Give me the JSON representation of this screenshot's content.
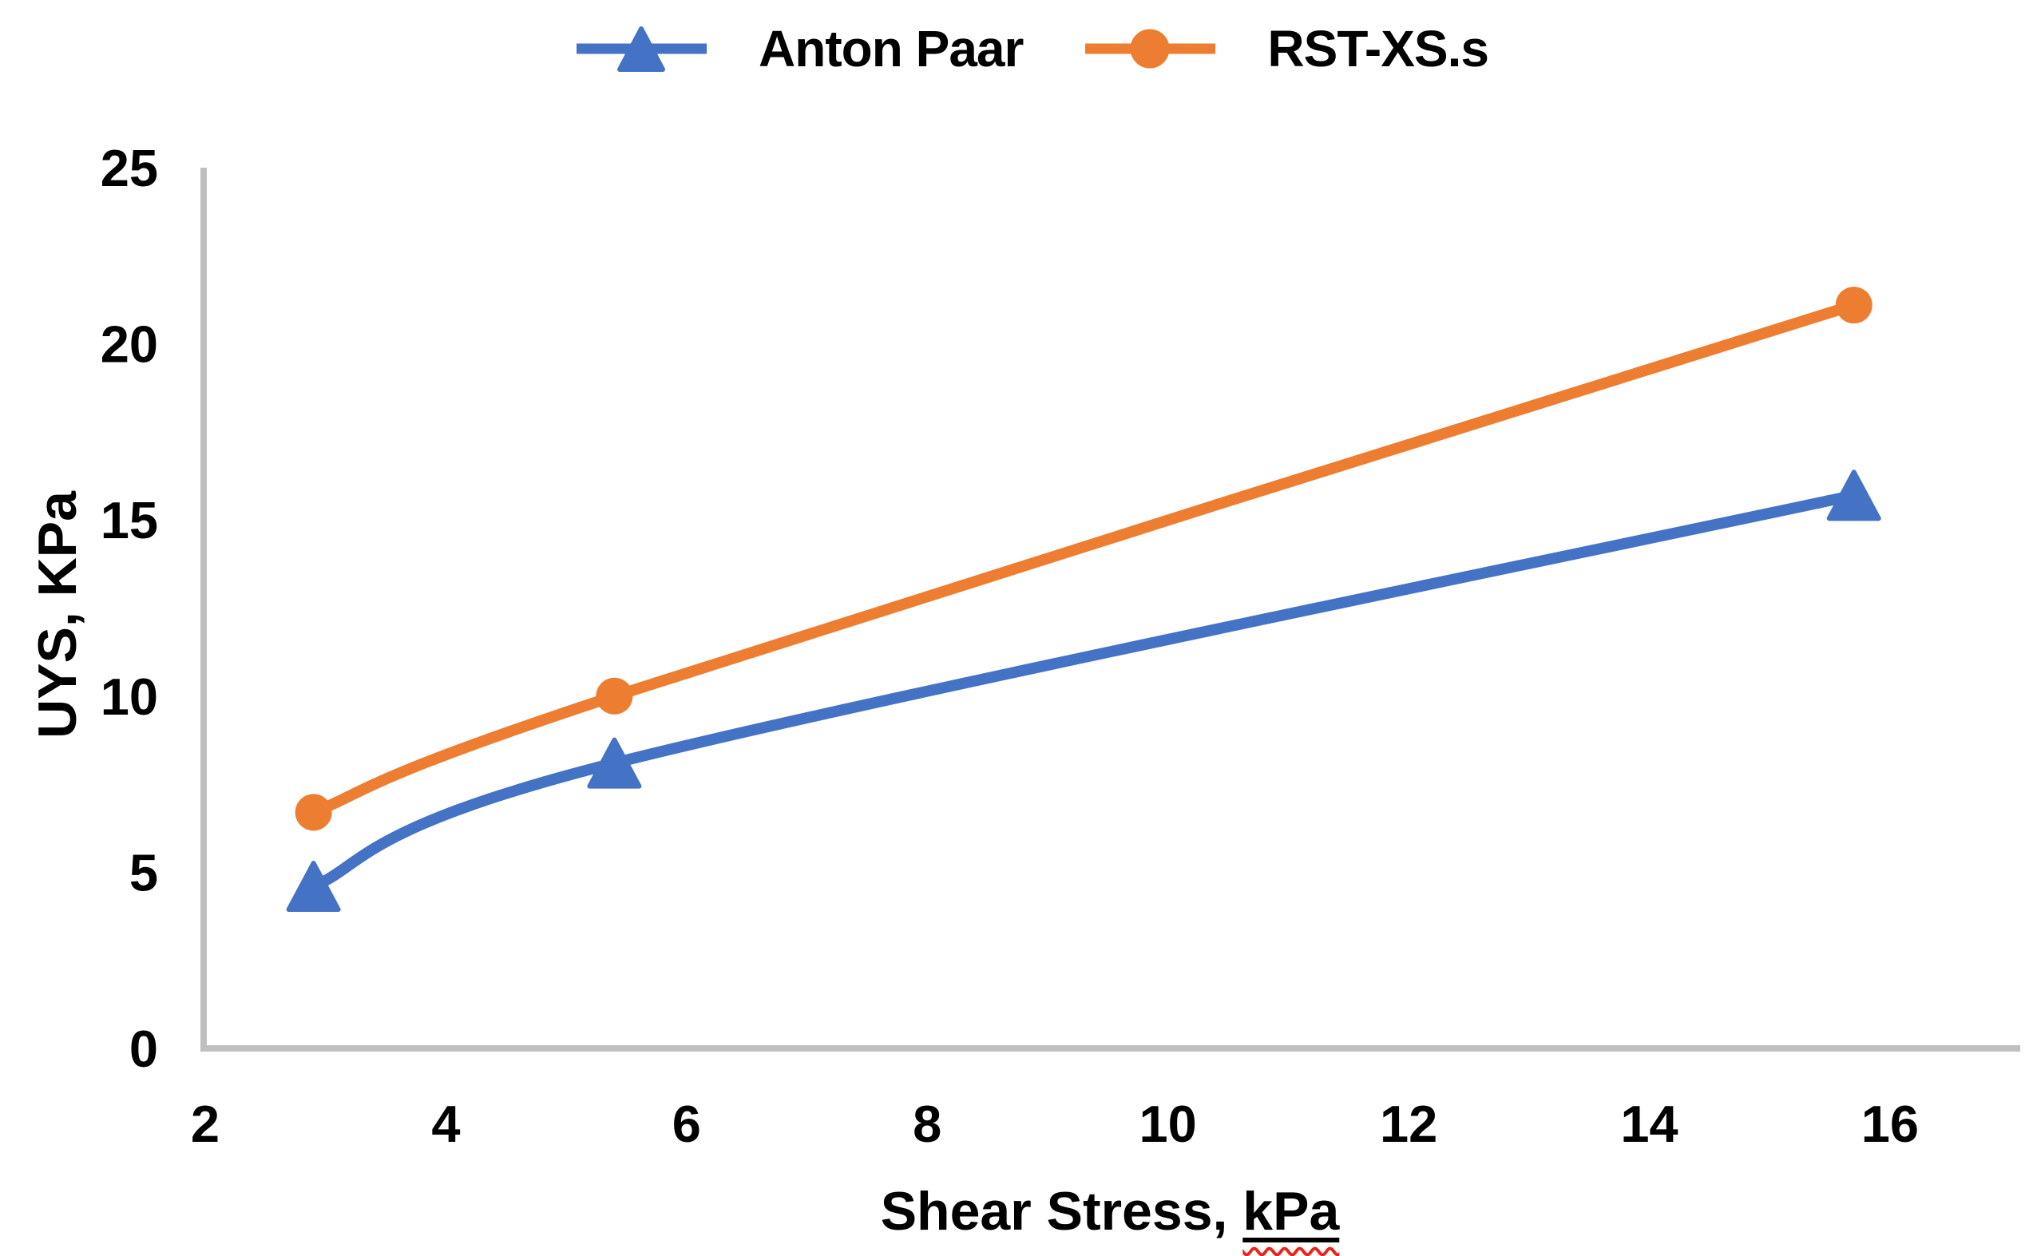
{
  "chart_data": {
    "type": "line",
    "title": "",
    "legend_position": "top",
    "grid": false,
    "smooth_lines": true,
    "xlabel": "Shear Stress, kPa",
    "xlabel_prefix": "Shear Stress, ",
    "xlabel_unit": "kPa",
    "ylabel": "UYS, KPa",
    "x_axis": {
      "min": 2,
      "max": 16,
      "tick_step": 2,
      "ticks": [
        2,
        4,
        6,
        8,
        10,
        12,
        14,
        16
      ]
    },
    "y_axis": {
      "min": 0,
      "max": 25,
      "tick_step": 5,
      "ticks": [
        0,
        5,
        10,
        15,
        20,
        25
      ]
    },
    "series": [
      {
        "name": "Anton Paar",
        "color": "#4472C4",
        "marker": "triangle",
        "points": [
          {
            "x": 2.9,
            "y": 4.6
          },
          {
            "x": 5.4,
            "y": 8.1
          },
          {
            "x": 15.7,
            "y": 15.7
          }
        ]
      },
      {
        "name": "RST-XS.s",
        "color": "#ED7D31",
        "marker": "circle",
        "points": [
          {
            "x": 2.9,
            "y": 6.7
          },
          {
            "x": 5.4,
            "y": 10.0
          },
          {
            "x": 15.7,
            "y": 21.1
          }
        ]
      }
    ]
  },
  "styles": {
    "axis_line_color": "#BFBFBF",
    "text_color": "#000000",
    "spellcheck_underline_color": "#E8251A"
  }
}
